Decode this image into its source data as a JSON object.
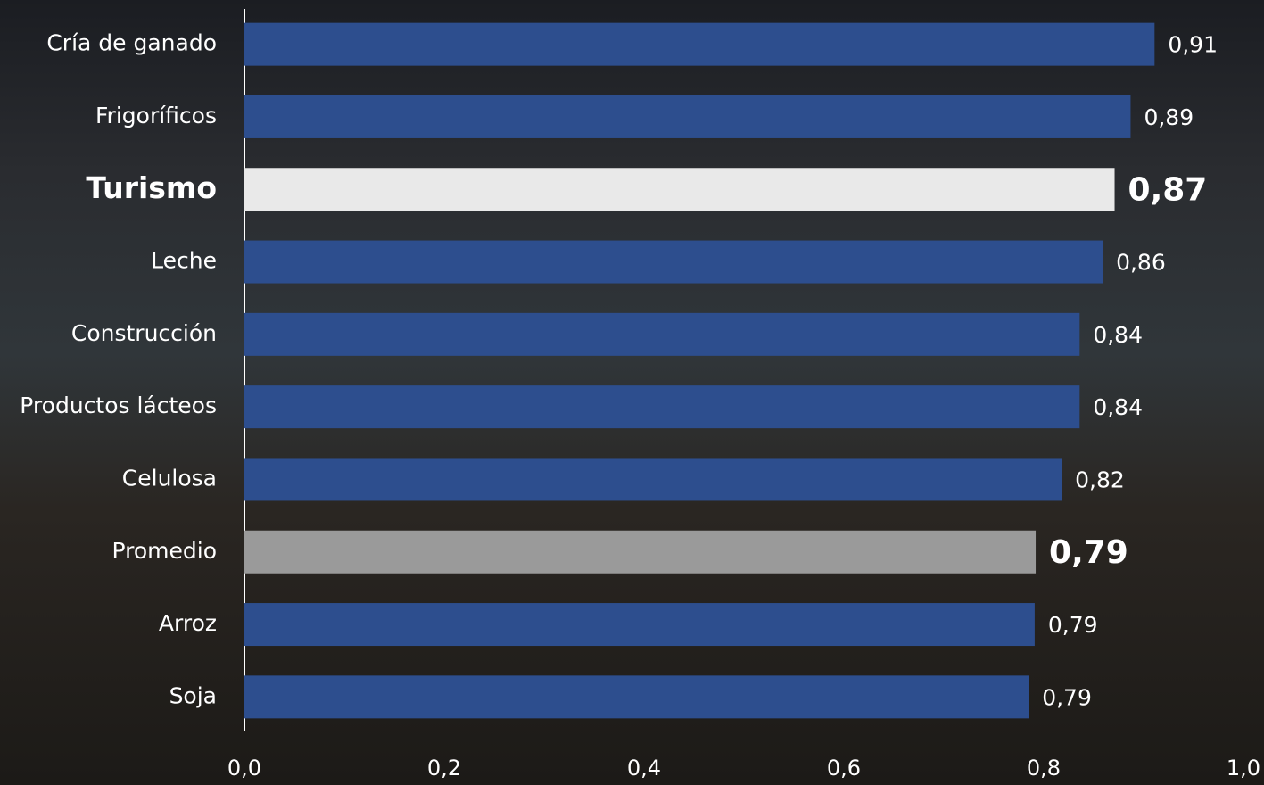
{
  "chart_data": {
    "type": "barh",
    "categories": [
      "Cría de ganado",
      "Frigoríficos",
      "Turismo",
      "Leche",
      "Construcción",
      "Productos lácteos",
      "Celulosa",
      "Promedio",
      "Arroz",
      "Soja"
    ],
    "values": [
      0.911,
      0.887,
      0.871,
      0.859,
      0.836,
      0.836,
      0.818,
      0.792,
      0.791,
      0.785
    ],
    "value_labels": [
      "0,91",
      "0,89",
      "0,87",
      "0,86",
      "0,84",
      "0,84",
      "0,82",
      "0,79",
      "0,79",
      "0,79"
    ],
    "colors": [
      "#2d4e8e",
      "#2d4e8e",
      "#e9e9e9",
      "#2d4e8e",
      "#2d4e8e",
      "#2d4e8e",
      "#2d4e8e",
      "#9a9a9a",
      "#2d4e8e",
      "#2d4e8e"
    ],
    "xlim": [
      0,
      1
    ],
    "xticks": [
      {
        "value": 0,
        "label": "0,0"
      },
      {
        "value": 0.2,
        "label": "0,2"
      },
      {
        "value": 0.4,
        "label": "0,4"
      },
      {
        "value": 0.6,
        "label": "0,6"
      },
      {
        "value": 0.8,
        "label": "0,8"
      },
      {
        "value": 1,
        "label": "1,0"
      }
    ]
  }
}
